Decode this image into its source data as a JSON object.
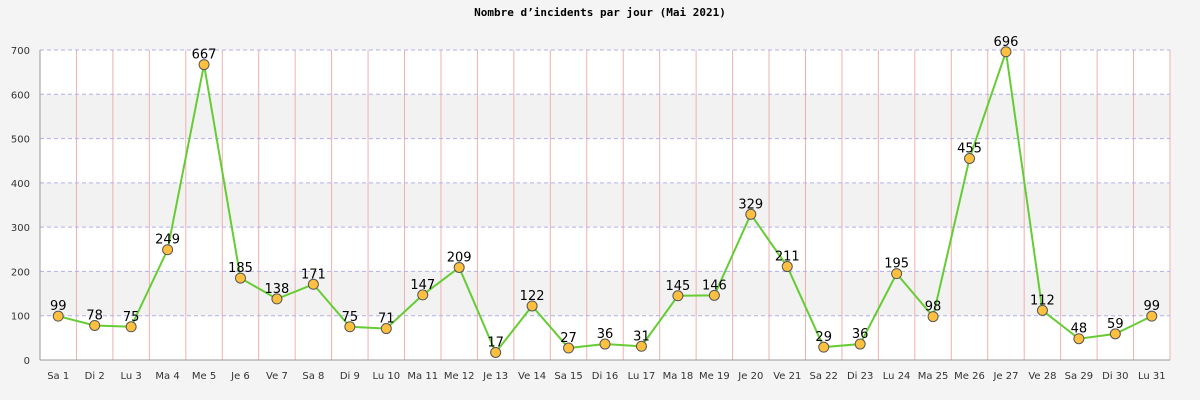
{
  "chart_data": {
    "type": "line",
    "title": "Nombre d’incidents par jour (Mai 2021)",
    "xlabel": "",
    "ylabel": "",
    "ylim": [
      0,
      700
    ],
    "yticks": [
      0,
      100,
      200,
      300,
      400,
      500,
      600,
      700
    ],
    "grid": true,
    "legend": "none",
    "categories": [
      "Sa 1",
      "Di 2",
      "Lu 3",
      "Ma 4",
      "Me 5",
      "Je 6",
      "Ve 7",
      "Sa 8",
      "Di 9",
      "Lu 10",
      "Ma 11",
      "Me 12",
      "Je 13",
      "Ve 14",
      "Sa 15",
      "Di 16",
      "Lu 17",
      "Ma 18",
      "Me 19",
      "Je 20",
      "Ve 21",
      "Sa 22",
      "Di 23",
      "Lu 24",
      "Ma 25",
      "Me 26",
      "Je 27",
      "Ve 28",
      "Sa 29",
      "Di 30",
      "Lu 31"
    ],
    "series": [
      {
        "values": [
          99,
          78,
          75,
          249,
          667,
          185,
          138,
          171,
          75,
          71,
          147,
          209,
          17,
          122,
          27,
          36,
          31,
          145,
          146,
          329,
          211,
          29,
          36,
          195,
          98,
          455,
          696,
          112,
          48,
          59,
          99
        ]
      }
    ],
    "colors": {
      "line": "#66cc33",
      "marker_fill": "#ffc040",
      "marker_stroke": "#555555",
      "vertical_grid": "#f0b0b0",
      "horizontal_grid": "#b0b0ee",
      "band": "#f2f2f2"
    }
  }
}
